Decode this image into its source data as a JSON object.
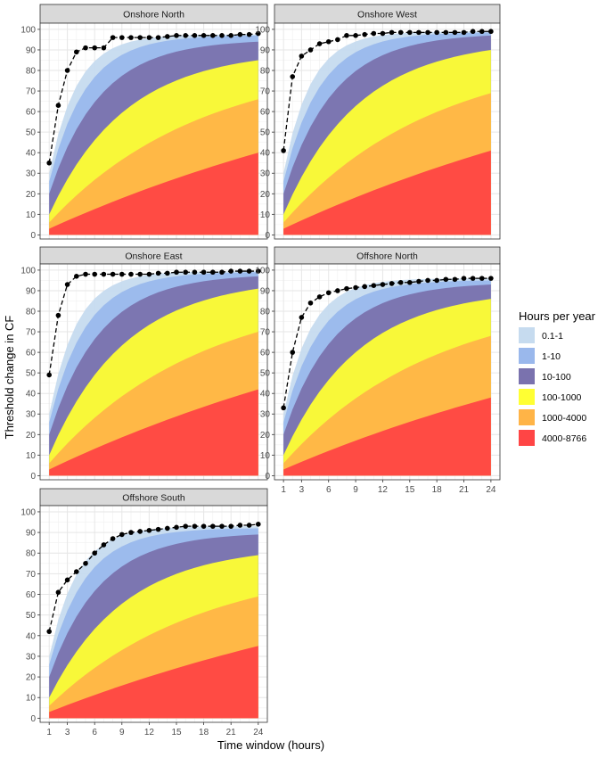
{
  "chart_data": {
    "type": "area",
    "xlabel": "Time window (hours)",
    "ylabel": "Threshold change in CF",
    "x_ticks": [
      1,
      3,
      6,
      9,
      12,
      15,
      18,
      21,
      24
    ],
    "y_ticks": [
      0,
      10,
      20,
      30,
      40,
      50,
      60,
      70,
      80,
      90,
      100
    ],
    "xlim": [
      0,
      25
    ],
    "ylim": [
      -2,
      103
    ],
    "grid": true,
    "legend": {
      "title": "Hours per year",
      "position": "right",
      "items": [
        {
          "label": "0.1-1",
          "color": "#c6dbef"
        },
        {
          "label": "1-10",
          "color": "#9ab8ec"
        },
        {
          "label": "10-100",
          "color": "#7a72ae"
        },
        {
          "label": "100-1000",
          "color": "#ffff33"
        },
        {
          "label": "1000-4000",
          "color": "#ffb447"
        },
        {
          "label": "4000-8766",
          "color": "#ff4545"
        }
      ]
    },
    "x": [
      1,
      2,
      3,
      4,
      5,
      6,
      7,
      8,
      9,
      10,
      11,
      12,
      13,
      14,
      15,
      16,
      17,
      18,
      19,
      20,
      21,
      22,
      23,
      24
    ],
    "panels": [
      {
        "title": "Onshore North",
        "boundaries_at_x": [
          1,
          24
        ],
        "boundary_values": {
          "4000-8766": [
            3,
            40
          ],
          "1000-4000": [
            6,
            66
          ],
          "100-1000": [
            10,
            85
          ],
          "10-100": [
            20,
            94
          ],
          "1-10": [
            26,
            97
          ],
          "0.1-1": [
            30,
            97.5
          ]
        },
        "max_line": [
          35,
          63,
          80,
          89,
          91,
          91,
          91,
          96,
          96,
          96,
          96,
          96,
          96,
          96.5,
          97,
          97,
          97,
          97,
          97,
          97,
          97,
          97.5,
          97.5,
          98
        ]
      },
      {
        "title": "Onshore West",
        "boundaries_at_x": [
          1,
          24
        ],
        "boundary_values": {
          "4000-8766": [
            3,
            41
          ],
          "1000-4000": [
            6,
            69
          ],
          "100-1000": [
            10,
            90
          ],
          "10-100": [
            20,
            97
          ],
          "1-10": [
            26,
            98.5
          ],
          "0.1-1": [
            30,
            99
          ]
        },
        "max_line": [
          41,
          77,
          87,
          90,
          93,
          94,
          95,
          97,
          97,
          97.5,
          98,
          98,
          98.5,
          98.5,
          98.5,
          98.5,
          98.5,
          98.5,
          98.5,
          98.5,
          98.5,
          99,
          99,
          99
        ]
      },
      {
        "title": "Onshore East",
        "boundaries_at_x": [
          1,
          24
        ],
        "boundary_values": {
          "4000-8766": [
            3,
            42
          ],
          "1000-4000": [
            6,
            70
          ],
          "100-1000": [
            10,
            91
          ],
          "10-100": [
            20,
            97
          ],
          "1-10": [
            26,
            99
          ],
          "0.1-1": [
            30,
            99.5
          ]
        },
        "max_line": [
          49,
          78,
          93,
          97,
          98,
          98,
          98,
          98,
          98,
          98,
          98,
          98,
          98.5,
          98.5,
          99,
          99,
          99,
          99,
          99,
          99,
          99.5,
          99.5,
          99.5,
          99.5
        ]
      },
      {
        "title": "Offshore North",
        "boundaries_at_x": [
          1,
          24
        ],
        "boundary_values": {
          "4000-8766": [
            3,
            38
          ],
          "1000-4000": [
            6,
            68
          ],
          "100-1000": [
            10,
            86
          ],
          "10-100": [
            20,
            93
          ],
          "1-10": [
            26,
            95
          ],
          "0.1-1": [
            30,
            96
          ]
        },
        "max_line": [
          33,
          60,
          77,
          84,
          87,
          89,
          90,
          91,
          91.5,
          92,
          92.5,
          93,
          93.5,
          94,
          94,
          94.5,
          95,
          95,
          95.5,
          95.5,
          96,
          96,
          96,
          96
        ]
      },
      {
        "title": "Offshore South",
        "boundaries_at_x": [
          1,
          24
        ],
        "boundary_values": {
          "4000-8766": [
            3,
            35
          ],
          "1000-4000": [
            6,
            59
          ],
          "100-1000": [
            10,
            79
          ],
          "10-100": [
            20,
            89
          ],
          "1-10": [
            26,
            92
          ],
          "0.1-1": [
            30,
            93
          ]
        },
        "max_line": [
          42,
          61,
          67,
          71,
          75,
          80,
          84,
          87,
          89,
          90,
          90.5,
          91,
          91.5,
          92,
          92.5,
          93,
          93,
          93,
          93,
          93,
          93,
          93.5,
          93.5,
          94
        ]
      }
    ]
  }
}
